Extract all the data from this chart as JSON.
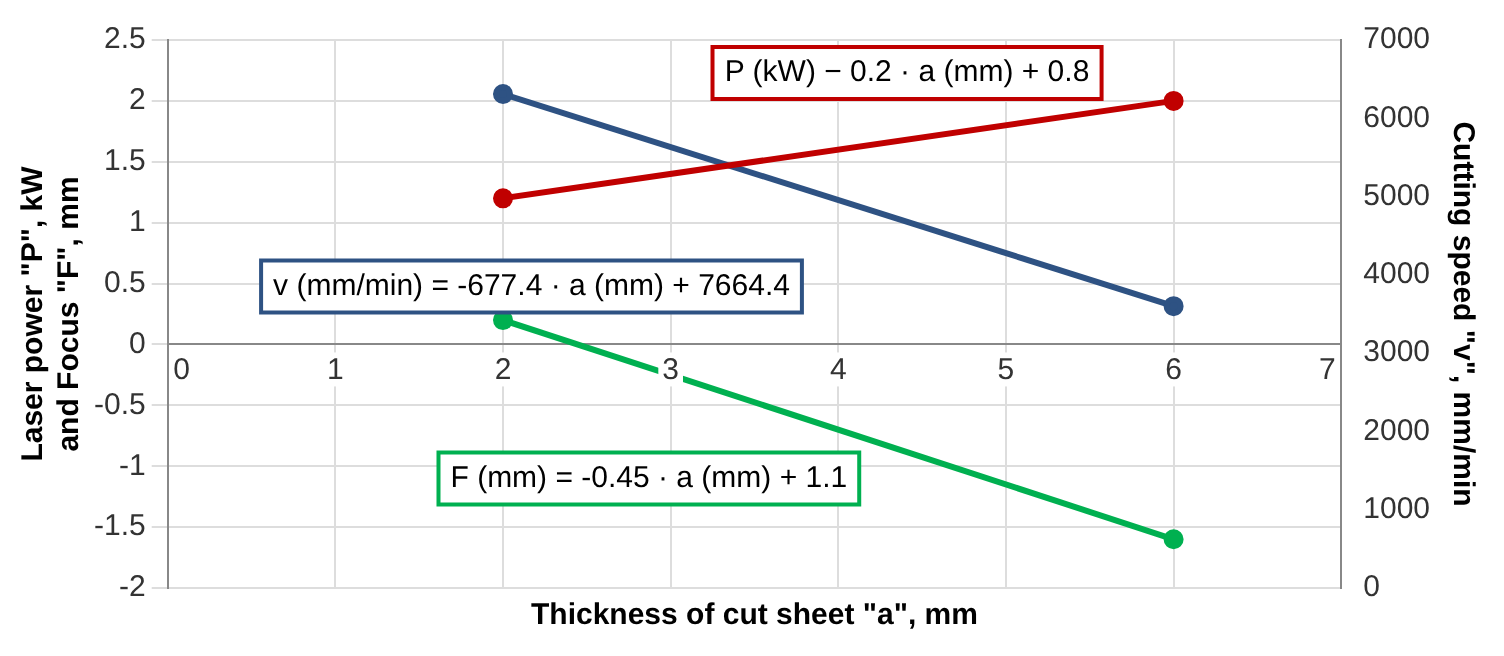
{
  "chart_data": {
    "type": "line",
    "xlabel": "Thickness of cut sheet \"a\", mm",
    "ylabel": "Laser power \"P\", kW\nand Focus \"F\", mm",
    "y2label": "Cutting speed \"v\", mm/min",
    "x": [
      2,
      6
    ],
    "series": [
      {
        "color": "#c00000",
        "values": [
          1.2,
          2.0
        ]
      },
      {
        "color": "#2e5283",
        "values": [
          6310,
          3600
        ],
        "axis": "y2"
      },
      {
        "color": "#00b050",
        "values": [
          0.2,
          -1.6
        ]
      }
    ],
    "annotations": [
      "P (kW) − 0.2 · a (mm) + 0.8",
      "v (mm/min) = -677.4 · a (mm) + 7664.4",
      "F (mm) = -0.45 · a (mm) + 1.1"
    ],
    "xlim": [
      0,
      7
    ],
    "xticks": [
      0,
      1,
      2,
      3,
      4,
      5,
      6,
      7
    ],
    "ylim": [
      -2,
      2.5
    ],
    "yticks": [
      -2,
      -1.5,
      -1,
      -0.5,
      0,
      0.5,
      1,
      1.5,
      2,
      2.5
    ],
    "y2lim": [
      0,
      7000
    ],
    "y2ticks": [
      0,
      1000,
      2000,
      3000,
      4000,
      5000,
      6000,
      7000
    ],
    "grid": true,
    "marker": "circle",
    "line_style": "solid",
    "legend": false
  }
}
